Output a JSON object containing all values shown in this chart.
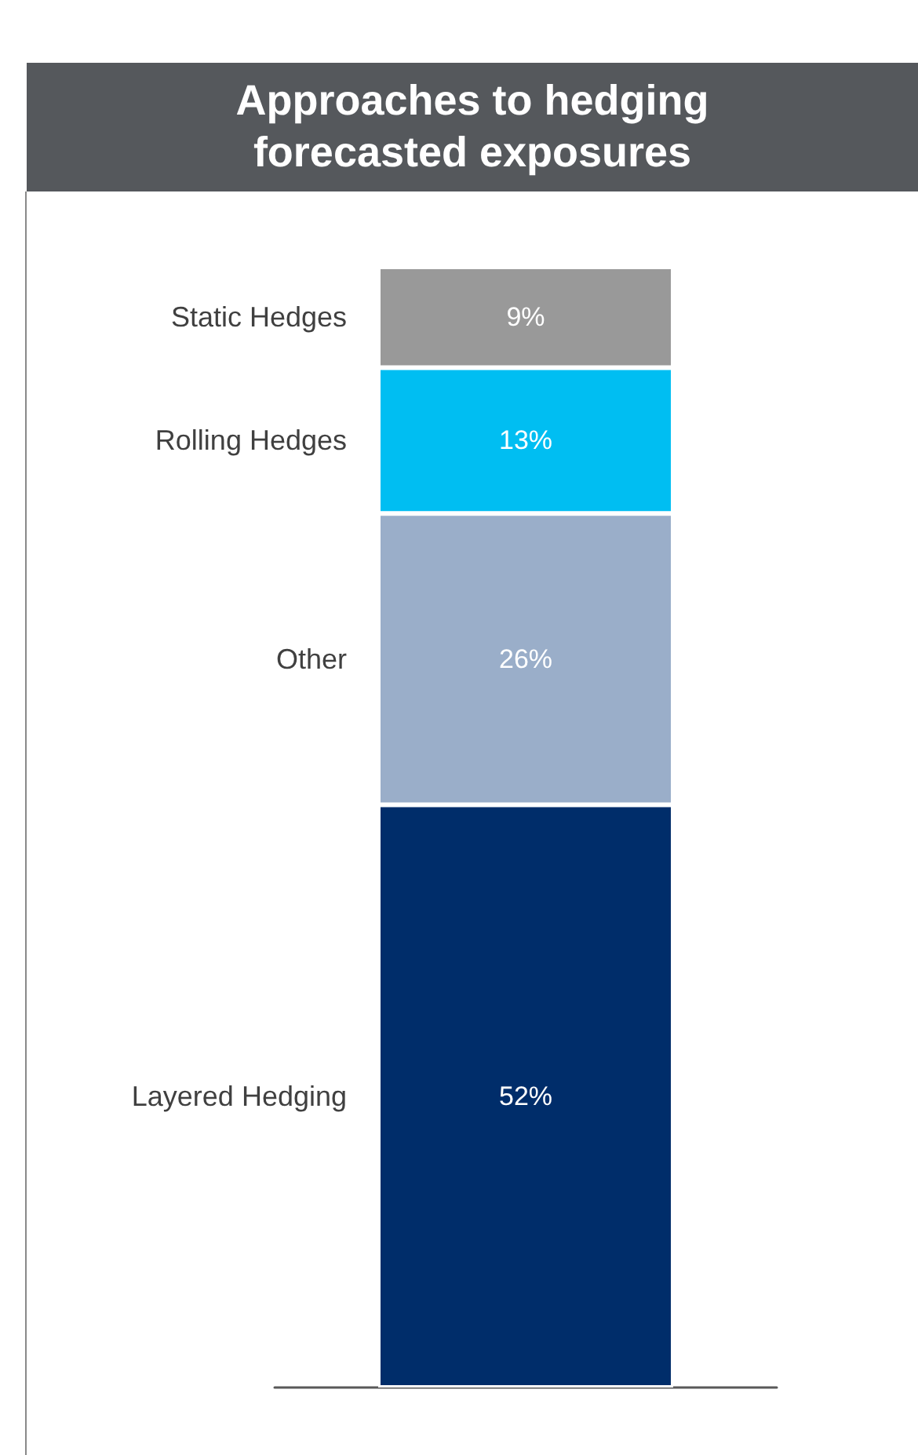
{
  "chart_data": {
    "type": "bar",
    "title": "Approaches to hedging forecasted exposures",
    "stacked": true,
    "tick_labels": false,
    "categories": [
      null
    ],
    "series": [
      {
        "name": "Layered Hedging",
        "color": "#002d6a",
        "values": [
          52
        ],
        "value_labels": [
          "52%"
        ]
      },
      {
        "name": "Other",
        "color": "#9aaec9",
        "values": [
          26
        ],
        "value_labels": [
          "26%"
        ]
      },
      {
        "name": "Rolling Hedges",
        "color": "#00bef2",
        "values": [
          13
        ],
        "value_labels": [
          "13%"
        ]
      },
      {
        "name": "Static Hedges",
        "color": "#999999",
        "values": [
          9
        ],
        "value_labels": [
          "9%"
        ]
      }
    ]
  }
}
